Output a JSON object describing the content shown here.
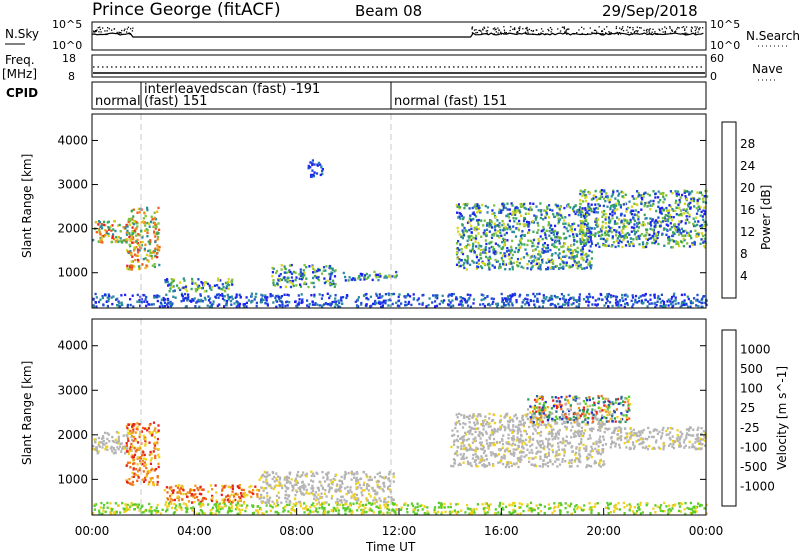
{
  "header": {
    "station": "Prince George (fitACF)",
    "beam": "Beam 08",
    "date": "29/Sep/2018"
  },
  "noise_panel": {
    "left_label": "N.Sky",
    "right_label": "N.Search",
    "left_ticks": [
      "10^5",
      "10^0"
    ],
    "right_ticks": [
      "10^5",
      "10^0"
    ]
  },
  "freq_panel": {
    "left_label_line1": "Freq.",
    "left_label_line2": "[MHz]",
    "right_label": "Nave",
    "left_ticks": [
      "18",
      "8"
    ],
    "right_ticks": [
      "60",
      "0"
    ]
  },
  "cpid_panel": {
    "label": "CPID",
    "segments": [
      {
        "text": "normal",
        "start_hour": 0
      },
      {
        "text": "interleavedscan (fast) -191",
        "text2": "(fast) 151",
        "start_hour": 2.0
      },
      {
        "text": "normal (fast) 151",
        "start_hour": 12.0
      }
    ]
  },
  "x_axis": {
    "label": "Time UT",
    "ticks": [
      "00:00",
      "04:00",
      "08:00",
      "12:00",
      "16:00",
      "20:00",
      "00:00"
    ],
    "tick_hours": [
      0,
      4,
      8,
      12,
      16,
      20,
      24
    ],
    "dashed_lines_hours": [
      2.0,
      12.0
    ]
  },
  "chart_data": [
    {
      "type": "heatmap",
      "title": "Power",
      "ylabel": "Slant Range [km]",
      "yticks": [
        1000,
        2000,
        3000,
        4000
      ],
      "ylim": [
        200,
        4600
      ],
      "xlim_hours": [
        0,
        24
      ],
      "colorbar": {
        "label": "Power [dB]",
        "ticks": [
          "4",
          "8",
          "12",
          "16",
          "20",
          "24",
          "28"
        ],
        "colors": [
          "#1c22f0",
          "#1e4bd6",
          "#2a8c9e",
          "#36a65a",
          "#7bc23a",
          "#d5d51c",
          "#f0b41c",
          "#f08a1c",
          "#f05a1c",
          "#e82020"
        ]
      },
      "regions": [
        {
          "t0": 0.0,
          "t1": 1.7,
          "r0": 1700,
          "r1": 2200,
          "level": "high"
        },
        {
          "t0": 1.3,
          "t1": 2.6,
          "r0": 1100,
          "r1": 2500,
          "level": "high"
        },
        {
          "t0": 2.8,
          "t1": 5.5,
          "r0": 600,
          "r1": 900,
          "level": "mid"
        },
        {
          "t0": 7.0,
          "t1": 9.5,
          "r0": 700,
          "r1": 1200,
          "level": "mid"
        },
        {
          "t0": 9.8,
          "t1": 11.9,
          "r0": 850,
          "r1": 1050,
          "level": "mid"
        },
        {
          "t0": 8.4,
          "t1": 9.0,
          "r0": 3200,
          "r1": 3600,
          "level": "low"
        },
        {
          "t0": 14.2,
          "t1": 19.5,
          "r0": 1100,
          "r1": 2600,
          "level": "mid"
        },
        {
          "t0": 19.0,
          "t1": 24.0,
          "r0": 1600,
          "r1": 2900,
          "level": "mid"
        },
        {
          "t0": 0.0,
          "t1": 24.0,
          "r0": 250,
          "r1": 550,
          "level": "low"
        }
      ]
    },
    {
      "type": "heatmap",
      "title": "Velocity",
      "ylabel": "Slant Range [km]",
      "yticks": [
        1000,
        2000,
        3000,
        4000
      ],
      "ylim": [
        200,
        4600
      ],
      "xlim_hours": [
        0,
        24
      ],
      "colorbar": {
        "label": "Velocity [m s^-1]",
        "ticks": [
          "1000",
          "500",
          "100",
          "25",
          "-25",
          "-100",
          "-500",
          "-1000"
        ],
        "colors": [
          "#1c2fd6",
          "#2a6e8c",
          "#2aa05a",
          "#5acd2a",
          "#b4b4b4",
          "#f0d21c",
          "#f09a1c",
          "#f06a1c",
          "#e82020"
        ]
      },
      "regions": [
        {
          "t0": 0.0,
          "t1": 1.6,
          "r0": 1600,
          "r1": 2100,
          "level": "gray"
        },
        {
          "t0": 1.3,
          "t1": 2.6,
          "r0": 900,
          "r1": 2300,
          "level": "neg"
        },
        {
          "t0": 2.8,
          "t1": 6.5,
          "r0": 500,
          "r1": 900,
          "level": "neg"
        },
        {
          "t0": 6.5,
          "t1": 11.8,
          "r0": 500,
          "r1": 1200,
          "level": "gray"
        },
        {
          "t0": 14.0,
          "t1": 20.0,
          "r0": 1300,
          "r1": 2500,
          "level": "gray"
        },
        {
          "t0": 17.0,
          "t1": 21.0,
          "r0": 2300,
          "r1": 2900,
          "level": "mix"
        },
        {
          "t0": 20.0,
          "t1": 24.0,
          "r0": 1700,
          "r1": 2200,
          "level": "gray"
        },
        {
          "t0": 0.0,
          "t1": 24.0,
          "r0": 250,
          "r1": 500,
          "level": "pos"
        }
      ]
    }
  ]
}
